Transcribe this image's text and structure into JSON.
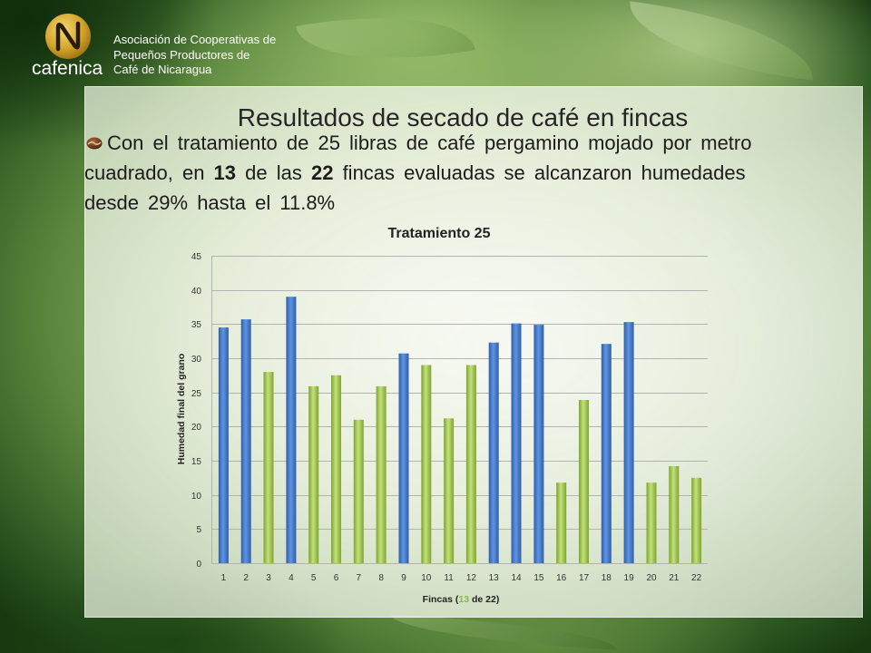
{
  "header": {
    "logo_icon": "cafenica-logo-icon",
    "logo_wordmark": "cafenica",
    "org_lines": [
      "Asociación de Cooperativas de",
      "Pequeños Productores de",
      "Café de Nicaragua"
    ]
  },
  "slide": {
    "title": "Resultados de secado de café en fincas",
    "bullet_icon": "coffee-bean-icon",
    "bullet_segments": [
      "Con el tratamiento de 25 libras de café pergamino mojado por metro cuadrado, en ",
      "13",
      " de las ",
      "22",
      " fincas evaluadas se alcanzaron humedades desde 29% hasta el 11.8%"
    ]
  },
  "theme": {
    "title_color": "#262626",
    "text_color": "#1c1c1c",
    "logo_gold": "#d4a52c"
  },
  "chart_data": {
    "type": "bar",
    "title": "Tratamiento 25",
    "xlabel": "Fincas (13 de 22)",
    "xlabel_highlight": "13",
    "ylabel": "Humedad final del grano",
    "categories": [
      "1",
      "2",
      "3",
      "4",
      "5",
      "6",
      "7",
      "8",
      "9",
      "10",
      "11",
      "12",
      "13",
      "14",
      "15",
      "16",
      "17",
      "18",
      "19",
      "20",
      "21",
      "22"
    ],
    "values": [
      34.5,
      35.7,
      28.0,
      39.0,
      25.9,
      27.5,
      21.0,
      25.9,
      30.7,
      29.0,
      21.2,
      29.0,
      32.3,
      35.1,
      34.9,
      11.8,
      23.9,
      32.1,
      35.3,
      11.8,
      14.2,
      12.5
    ],
    "highlighted_categories": [
      "3",
      "5",
      "6",
      "7",
      "8",
      "10",
      "11",
      "12",
      "16",
      "17",
      "20",
      "21",
      "22"
    ],
    "ylim": [
      0,
      45
    ],
    "yticks": [
      0,
      5,
      10,
      15,
      20,
      25,
      30,
      35,
      40,
      45
    ],
    "grid": true,
    "legend": "none",
    "colors": {
      "bar": "#2f5ea9",
      "bar_light": "#5f94e2",
      "highlighted_bar": "#7ea52c",
      "highlighted_bar_light": "#c4e07e",
      "gridline": "#b3b3b3",
      "xlabel_highlight": "#8fb93a"
    }
  }
}
